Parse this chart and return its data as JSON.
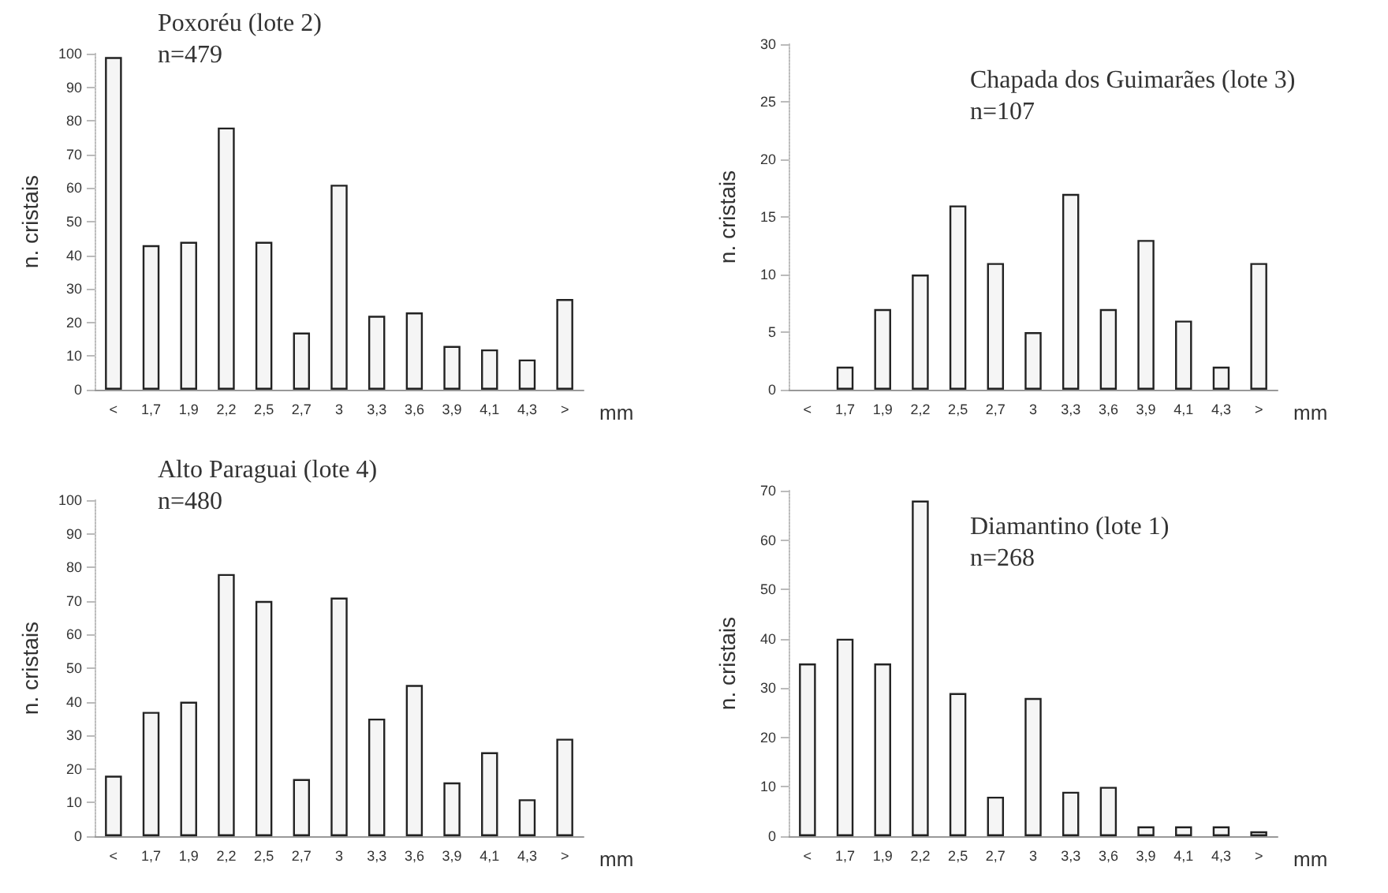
{
  "chart_data": [
    {
      "type": "bar",
      "title": "Poxoréu (lote 2)",
      "subtitle": "n=479",
      "xlabel": "mm",
      "ylabel": "n. cristais",
      "categories": [
        "<",
        "1,7",
        "1,9",
        "2,2",
        "2,5",
        "2,7",
        "3",
        "3,3",
        "3,6",
        "3,9",
        "4,1",
        "4,3",
        ">"
      ],
      "values": [
        99,
        43,
        44,
        78,
        44,
        17,
        61,
        22,
        23,
        13,
        12,
        9,
        27
      ],
      "color": "#f5f5f5",
      "ylim": [
        0,
        100
      ],
      "yticks": [
        0,
        10,
        20,
        30,
        40,
        50,
        60,
        70,
        80,
        90,
        100
      ]
    },
    {
      "type": "bar",
      "title": "Chapada dos Guimarães (lote 3)",
      "subtitle": "n=107",
      "xlabel": "mm",
      "ylabel": "n. cristais",
      "categories": [
        "<",
        "1,7",
        "1,9",
        "2,2",
        "2,5",
        "2,7",
        "3",
        "3,3",
        "3,6",
        "3,9",
        "4,1",
        "4,3",
        ">"
      ],
      "values": [
        0,
        2,
        7,
        10,
        16,
        11,
        5,
        17,
        7,
        13,
        6,
        2,
        11
      ],
      "color": "#f5f5f5",
      "ylim": [
        0,
        30
      ],
      "yticks": [
        0,
        5,
        10,
        15,
        20,
        25,
        30
      ]
    },
    {
      "type": "bar",
      "title": "Alto Paraguai (lote 4)",
      "subtitle": "n=480",
      "xlabel": "mm",
      "ylabel": "n. cristais",
      "categories": [
        "<",
        "1,7",
        "1,9",
        "2,2",
        "2,5",
        "2,7",
        "3",
        "3,3",
        "3,6",
        "3,9",
        "4,1",
        "4,3",
        ">"
      ],
      "values": [
        18,
        37,
        40,
        78,
        70,
        17,
        71,
        35,
        45,
        16,
        25,
        11,
        29
      ],
      "color": "#f5f5f5",
      "ylim": [
        0,
        100
      ],
      "yticks": [
        0,
        10,
        20,
        30,
        40,
        50,
        60,
        70,
        80,
        90,
        100
      ]
    },
    {
      "type": "bar",
      "title": "Diamantino (lote 1)",
      "subtitle": "n=268",
      "xlabel": "mm",
      "ylabel": "n. cristais",
      "categories": [
        "<",
        "1,7",
        "1,9",
        "2,2",
        "2,5",
        "2,7",
        "3",
        "3,3",
        "3,6",
        "3,9",
        "4,1",
        "4,3",
        ">"
      ],
      "values": [
        35,
        40,
        35,
        68,
        29,
        8,
        28,
        9,
        10,
        2,
        2,
        2,
        1
      ],
      "color": "#f5f5f5",
      "ylim": [
        0,
        70
      ],
      "yticks": [
        0,
        10,
        20,
        30,
        40,
        50,
        60,
        70
      ]
    }
  ]
}
